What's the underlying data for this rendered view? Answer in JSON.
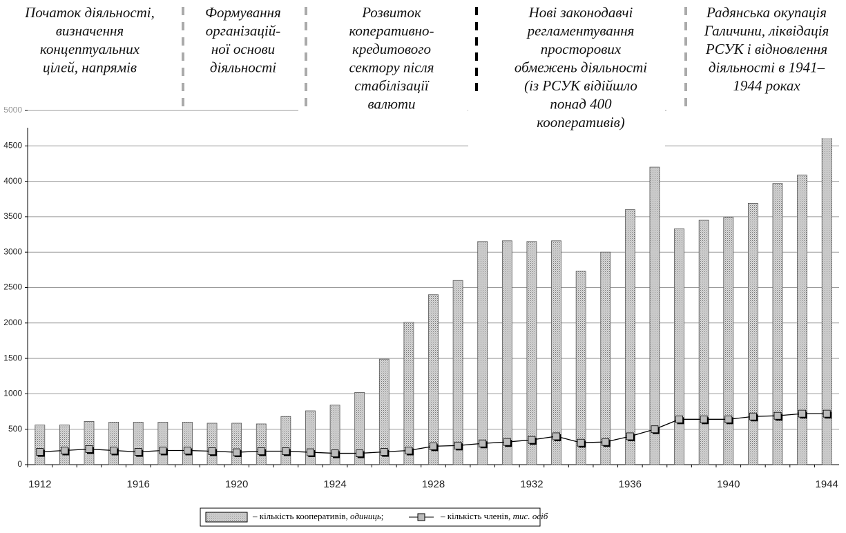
{
  "chart_data": {
    "type": "bar",
    "categories": [
      "1912",
      null,
      null,
      null,
      "1916",
      null,
      null,
      null,
      "1920",
      null,
      null,
      null,
      "1924",
      null,
      null,
      null,
      "1928",
      null,
      null,
      null,
      "1932",
      null,
      null,
      null,
      "1936",
      null,
      null,
      null,
      "1940",
      null,
      null,
      null,
      "1944"
    ],
    "series": [
      {
        "name": "кількість кооперативів",
        "unit": "одиниць",
        "type": "bar",
        "color": "#c8c8c8",
        "values": [
          560,
          560,
          610,
          600,
          600,
          600,
          600,
          585,
          585,
          575,
          680,
          760,
          840,
          1020,
          1490,
          2010,
          2400,
          2600,
          3150,
          3160,
          3150,
          3160,
          2730,
          3000,
          3600,
          4200,
          3330,
          3450,
          3490,
          3690,
          3970,
          4090,
          4620
        ]
      },
      {
        "name": "кількість членів",
        "unit": "тис. осіб",
        "type": "line",
        "color": "#000000",
        "values": [
          180,
          200,
          220,
          200,
          180,
          200,
          200,
          190,
          175,
          190,
          190,
          175,
          160,
          160,
          180,
          200,
          260,
          270,
          300,
          320,
          350,
          400,
          310,
          320,
          400,
          500,
          640,
          640,
          640,
          680,
          690,
          720,
          720
        ]
      }
    ],
    "ylim": [
      0,
      5000
    ],
    "yticks": [
      0,
      500,
      1000,
      1500,
      2000,
      2500,
      3000,
      3500,
      4000,
      4500,
      5000
    ],
    "grid": true,
    "annotations": [
      [
        "Початок діяльності,",
        "визначення",
        "концептуальних",
        "цілей, напрямів"
      ],
      [
        "Формування",
        "організацій-",
        "ної основи",
        "діяльності"
      ],
      [
        "Розвиток",
        "коперативно-",
        "кредитового",
        "сектору після",
        "стабілізації",
        "валюти"
      ],
      [
        "Нові законодавчі",
        "регламентування",
        "просторових",
        "обмежень діяльності",
        "(із РСУК відійшло",
        "понад 400",
        "кооперативів)"
      ],
      [
        "Радянська окупація",
        "Галичини, ліквідація",
        "РСУК і відновлення",
        "діяльності в 1941–",
        "1944 роках"
      ]
    ]
  }
}
